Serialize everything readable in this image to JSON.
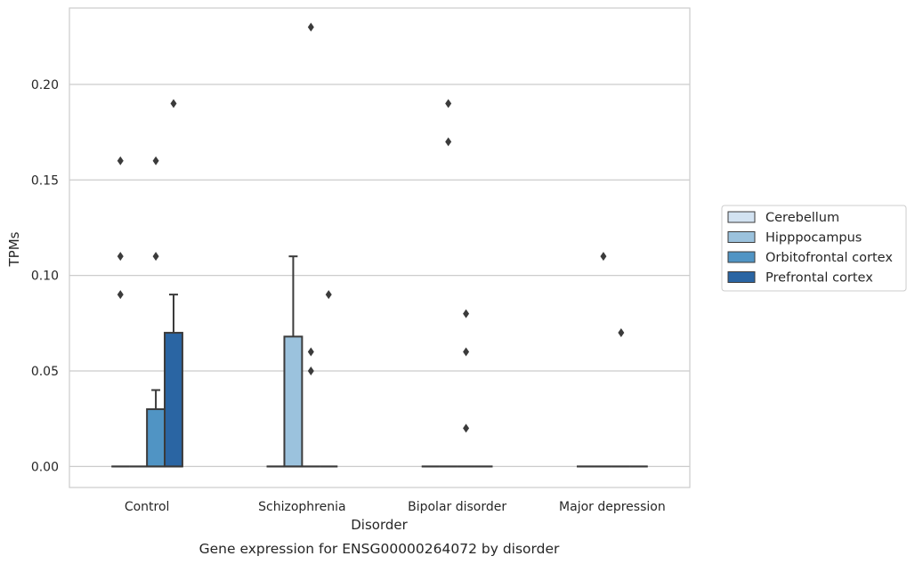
{
  "chart_data": {
    "type": "box",
    "caption": "Gene expression for ENSG00000264072 by disorder",
    "xlabel": "Disorder",
    "ylabel": "TPMs",
    "categories": [
      "Control",
      "Schizophrenia",
      "Bipolar disorder",
      "Major depression"
    ],
    "ylim": [
      -0.011,
      0.24
    ],
    "yticks": [
      0.0,
      0.05,
      0.1,
      0.15,
      0.2
    ],
    "ytick_labels": [
      "0.00",
      "0.05",
      "0.10",
      "0.15",
      "0.20"
    ],
    "grid": true,
    "legend_position": "right",
    "series": [
      {
        "name": "Cerebellum",
        "color": "#d2e2f1",
        "boxes": [
          {
            "q1": 0,
            "median": 0,
            "q3": 0,
            "whisker_low": 0,
            "whisker_high": 0,
            "outliers": [
              0.09,
              0.11,
              0.16
            ]
          },
          {
            "q1": 0,
            "median": 0,
            "q3": 0,
            "whisker_low": 0,
            "whisker_high": 0,
            "outliers": []
          },
          {
            "q1": 0,
            "median": 0,
            "q3": 0,
            "whisker_low": 0,
            "whisker_high": 0,
            "outliers": []
          },
          {
            "q1": 0,
            "median": 0,
            "q3": 0,
            "whisker_low": 0,
            "whisker_high": 0,
            "outliers": []
          }
        ]
      },
      {
        "name": "Hipppocampus",
        "color": "#9bc2dd",
        "boxes": [
          {
            "q1": 0,
            "median": 0,
            "q3": 0,
            "whisker_low": 0,
            "whisker_high": 0,
            "outliers": []
          },
          {
            "q1": 0,
            "median": 0,
            "q3": 0.068,
            "whisker_low": 0,
            "whisker_high": 0.11,
            "outliers": []
          },
          {
            "q1": 0,
            "median": 0,
            "q3": 0,
            "whisker_low": 0,
            "whisker_high": 0,
            "outliers": [
              0.17,
              0.19
            ]
          },
          {
            "q1": 0,
            "median": 0,
            "q3": 0,
            "whisker_low": 0,
            "whisker_high": 0,
            "outliers": [
              0.11
            ]
          }
        ]
      },
      {
        "name": "Orbitofrontal cortex",
        "color": "#5094c4",
        "boxes": [
          {
            "q1": 0,
            "median": 0,
            "q3": 0.03,
            "whisker_low": 0,
            "whisker_high": 0.04,
            "outliers": [
              0.11,
              0.16
            ]
          },
          {
            "q1": 0,
            "median": 0,
            "q3": 0,
            "whisker_low": 0,
            "whisker_high": 0,
            "outliers": [
              0.05,
              0.06,
              0.23
            ]
          },
          {
            "q1": 0,
            "median": 0,
            "q3": 0,
            "whisker_low": 0,
            "whisker_high": 0,
            "outliers": [
              0.02,
              0.06,
              0.08
            ]
          },
          {
            "q1": 0,
            "median": 0,
            "q3": 0,
            "whisker_low": 0,
            "whisker_high": 0,
            "outliers": [
              0.07
            ]
          }
        ]
      },
      {
        "name": "Prefrontal cortex",
        "color": "#2a65a3",
        "boxes": [
          {
            "q1": 0,
            "median": 0,
            "q3": 0.07,
            "whisker_low": 0,
            "whisker_high": 0.09,
            "outliers": [
              0.19
            ]
          },
          {
            "q1": 0,
            "median": 0,
            "q3": 0,
            "whisker_low": 0,
            "whisker_high": 0,
            "outliers": [
              0.09
            ]
          },
          {
            "q1": 0,
            "median": 0,
            "q3": 0,
            "whisker_low": 0,
            "whisker_high": 0,
            "outliers": []
          },
          {
            "q1": 0,
            "median": 0,
            "q3": 0,
            "whisker_low": 0,
            "whisker_high": 0,
            "outliers": []
          }
        ]
      }
    ]
  }
}
